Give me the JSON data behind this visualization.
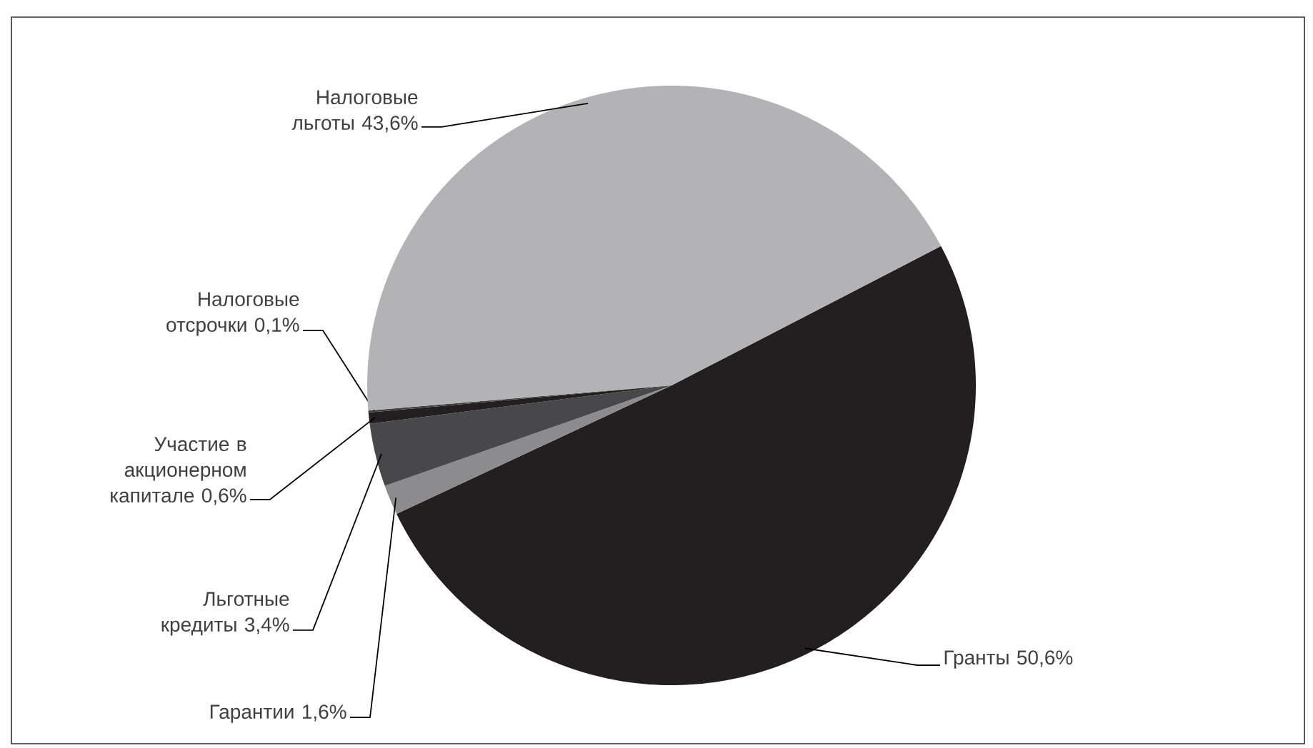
{
  "chart_data": {
    "type": "pie",
    "categories": [
      "Гранты",
      "Гарантии",
      "Льготные кредиты",
      "Участие в акционерном капитале",
      "Налоговые отсрочки",
      "Налоговые льготы"
    ],
    "values": [
      50.6,
      1.6,
      3.4,
      0.6,
      0.1,
      43.6
    ],
    "value_labels": [
      "50,6%",
      "1,6%",
      "3,4%",
      "0,6%",
      "0,1%",
      "43,6%"
    ],
    "colors": [
      "#231f20",
      "#8c8c8e",
      "#48484b",
      "#231f20",
      "#404040",
      "#b3b3b5"
    ]
  }
}
